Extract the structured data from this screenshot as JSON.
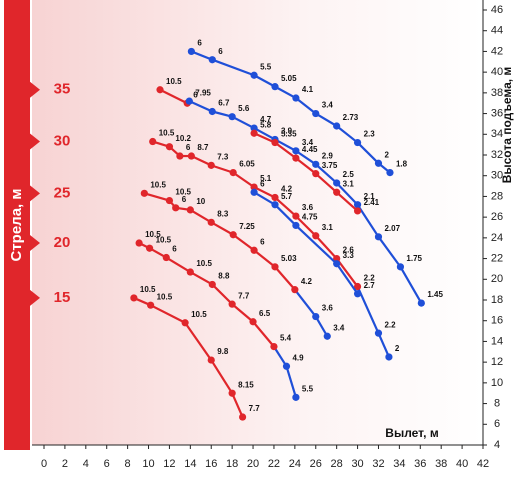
{
  "chart_data": {
    "type": "line",
    "y_title": "Стрела, м",
    "y2_title": "Высота подъема, м",
    "x_title": "Вылет, м",
    "xlim": [
      0,
      42
    ],
    "xticks": [
      0,
      2,
      4,
      6,
      8,
      10,
      12,
      14,
      16,
      18,
      20,
      22,
      24,
      26,
      28,
      30,
      32,
      34,
      36,
      38,
      40,
      42
    ],
    "ylim": [
      4,
      46
    ],
    "yticks": [
      4,
      6,
      8,
      10,
      12,
      14,
      16,
      18,
      20,
      22,
      24,
      26,
      28,
      30,
      32,
      34,
      36,
      38,
      40,
      42,
      44,
      46
    ],
    "series": [
      {
        "x": [
          14.1,
          16.1,
          20.1,
          22.1,
          24.1,
          26,
          28,
          30,
          32,
          33.1
        ],
        "values": [
          42,
          41.2,
          39.7,
          38.6,
          37.5,
          36,
          34.8,
          33.2,
          31.2,
          30.3
        ],
        "loads": [
          6,
          6,
          5.5,
          5.05,
          4.1,
          3.4,
          2.73,
          2.3,
          2,
          1.8
        ],
        "colors": [
          "#1f4fd8",
          "#1f4fd8",
          "#1f4fd8",
          "#1f4fd8",
          "#1f4fd8",
          "#1f4fd8",
          "#1f4fd8",
          "#1f4fd8",
          "#1f4fd8",
          "#1f4fd8"
        ]
      },
      {
        "name": 35,
        "x": [
          11.1,
          13.7,
          13.9,
          16.1,
          18,
          20.1,
          22.1,
          24.1,
          26,
          28,
          30,
          32,
          34.1,
          36.1
        ],
        "values": [
          38.3,
          37,
          37.2,
          36.2,
          35.7,
          34.6,
          33.5,
          32.4,
          31.1,
          29.3,
          27.2,
          24.1,
          21.2,
          17.7
        ],
        "loads": [
          10.5,
          6,
          7.95,
          6.7,
          5.6,
          4.7,
          3.9,
          3.4,
          2.9,
          2.5,
          2.1,
          2.07,
          1.75,
          1.45
        ],
        "colors": [
          "#e0262b",
          "#e0262b",
          "#1f4fd8",
          "#1f4fd8",
          "#1f4fd8",
          "#1f4fd8",
          "#1f4fd8",
          "#1f4fd8",
          "#1f4fd8",
          "#1f4fd8",
          "#1f4fd8",
          "#1f4fd8",
          "#1f4fd8",
          "#1f4fd8"
        ]
      },
      {
        "x": [
          20.1,
          22.1,
          24.1,
          26,
          28,
          30
        ],
        "values": [
          34.1,
          33.2,
          31.7,
          30.2,
          28.4,
          26.6
        ],
        "loads": [
          5.8,
          5.35,
          4.45,
          3.75,
          3.1,
          2.41
        ],
        "colors": [
          "#e0262b",
          "#e0262b",
          "#e0262b",
          "#e0262b",
          "#e0262b",
          "#e0262b"
        ]
      },
      {
        "name": 30,
        "x": [
          10.4,
          12,
          13,
          14.1,
          16,
          18.1,
          20.1,
          22.1,
          24.1,
          26,
          28,
          30,
          32,
          33
        ],
        "values": [
          33.3,
          32.8,
          31.9,
          31.9,
          31,
          30.3,
          28.9,
          27.9,
          26.1,
          24.2,
          22,
          19.3,
          14.8,
          12.5
        ],
        "loads": [
          10.5,
          10.2,
          6,
          8.7,
          7.3,
          6.05,
          5.1,
          4.2,
          3.6,
          3.1,
          2.6,
          2.2,
          2.2,
          2
        ],
        "colors": [
          "#e0262b",
          "#e0262b",
          "#e0262b",
          "#e0262b",
          "#e0262b",
          "#e0262b",
          "#e0262b",
          "#e0262b",
          "#e0262b",
          "#e0262b",
          "#e0262b",
          "#e0262b",
          "#1f4fd8",
          "#1f4fd8"
        ]
      },
      {
        "x": [
          20.1,
          22.1,
          24.1,
          28,
          30
        ],
        "values": [
          28.4,
          27.2,
          25.2,
          21.5,
          18.6
        ],
        "loads": [
          6,
          5.7,
          4.75,
          3.3,
          2.7
        ],
        "colors": [
          "#1f4fd8",
          "#1f4fd8",
          "#1f4fd8",
          "#1f4fd8",
          "#1f4fd8"
        ]
      },
      {
        "name": 25,
        "x": [
          9.6,
          12,
          12.6,
          14,
          16,
          18.1,
          20.1,
          22.1,
          24,
          26,
          27.1
        ],
        "values": [
          28.3,
          27.6,
          26.9,
          26.7,
          25.5,
          24.3,
          22.8,
          21.2,
          19,
          16.4,
          14.5
        ],
        "loads": [
          10.5,
          10.5,
          6,
          10,
          8.3,
          7.25,
          6,
          5.03,
          4.2,
          3.6,
          3.4
        ],
        "colors": [
          "#e0262b",
          "#e0262b",
          "#e0262b",
          "#e0262b",
          "#e0262b",
          "#e0262b",
          "#e0262b",
          "#e0262b",
          "#e0262b",
          "#1f4fd8",
          "#1f4fd8"
        ]
      },
      {
        "name": 20,
        "x": [
          9.1,
          10.1,
          11.7,
          14,
          16.1,
          18,
          20,
          22,
          23.2,
          24.1
        ],
        "values": [
          23.5,
          23,
          22.1,
          20.7,
          19.5,
          17.6,
          15.9,
          13.5,
          11.6,
          8.6
        ],
        "loads": [
          10.5,
          10.5,
          6,
          10.5,
          8.8,
          7.7,
          6.5,
          5.4,
          4.9,
          5.5
        ],
        "colors": [
          "#e0262b",
          "#e0262b",
          "#e0262b",
          "#e0262b",
          "#e0262b",
          "#e0262b",
          "#e0262b",
          "#e0262b",
          "#1f4fd8",
          "#1f4fd8"
        ]
      },
      {
        "name": 15,
        "x": [
          8.6,
          10.2,
          13.5,
          16,
          18,
          19
        ],
        "values": [
          18.2,
          17.5,
          15.8,
          12.2,
          9,
          6.7
        ],
        "loads": [
          10.5,
          10.5,
          10.5,
          9.8,
          8.15,
          7.7
        ],
        "colors": [
          "#e0262b",
          "#e0262b",
          "#e0262b",
          "#e0262b",
          "#e0262b",
          "#e0262b"
        ]
      }
    ]
  }
}
